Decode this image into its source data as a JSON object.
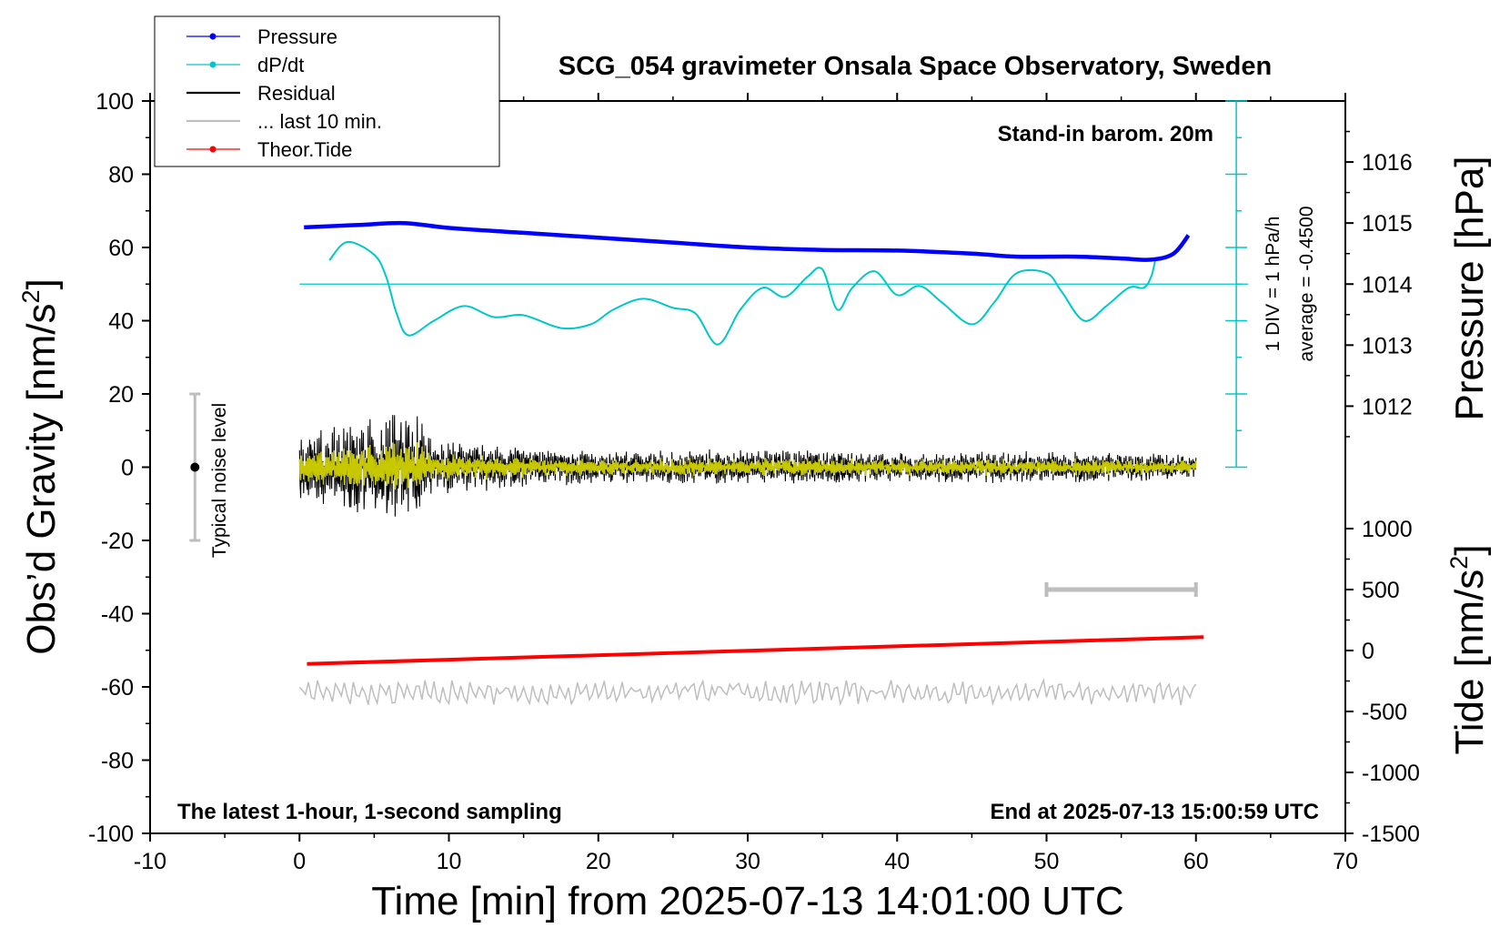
{
  "chart_data": {
    "type": "line",
    "title": "SCG_054 gravimeter Onsala Space Observatory, Sweden",
    "xlabel": "Time [min] from 2025-07-13 14:01:00 UTC",
    "ylabel_left_prefix": "Obs’d Gravity [nm/s",
    "ylabel_right_top": "Pressure [hPa]",
    "ylabel_right_bottom_prefix": "Tide [nm/s",
    "unit_sup": "2",
    "unit_close": "]",
    "xlim": [
      -10,
      70
    ],
    "ylim": [
      -100,
      100
    ],
    "xticks": [
      "-10",
      "0",
      "10",
      "20",
      "30",
      "40",
      "50",
      "60",
      "70"
    ],
    "xtick_values": [
      -10,
      0,
      10,
      20,
      30,
      40,
      50,
      60,
      70
    ],
    "yticks": [
      "-100",
      "-80",
      "-60",
      "-40",
      "-20",
      "0",
      "20",
      "40",
      "60",
      "80",
      "100"
    ],
    "ytick_values": [
      -100,
      -80,
      -60,
      -40,
      -20,
      0,
      20,
      40,
      60,
      80,
      100
    ],
    "pressure_axis": {
      "range_hPa": [
        1011,
        1017
      ],
      "ticks": [
        "1012",
        "1013",
        "1014",
        "1015",
        "1016"
      ],
      "tick_values": [
        1012,
        1013,
        1014,
        1015,
        1016
      ]
    },
    "tide_axis": {
      "range": [
        -1500,
        1500
      ],
      "ticks": [
        "-1500",
        "-1000",
        "-500",
        "0",
        "500",
        "1000"
      ],
      "tick_values": [
        -1500,
        -1000,
        -500,
        0,
        500,
        1000
      ]
    },
    "legend": {
      "position": "top-left",
      "entries": [
        {
          "label": "Pressure",
          "color": "#0000ff",
          "marker": true
        },
        {
          "label": "dP/dt",
          "color": "#00c8c8",
          "marker": true
        },
        {
          "label": "Residual",
          "color": "#000000",
          "marker": false
        },
        {
          "label": "... last 10 min.",
          "color": "#bebebe",
          "marker": false
        },
        {
          "label": "Theor.Tide",
          "color": "#ff0000",
          "marker": true
        }
      ]
    },
    "annotations": {
      "barometer": "Stand-in barom. 20m",
      "sampling": "The latest 1-hour, 1-second sampling",
      "end_time": "End at 2025-07-13 15:00:59 UTC",
      "noise": "Typical noise level",
      "div_scale": "1 DIV = 1 hPa/h",
      "average": "average = -0.4500"
    },
    "noise_level": {
      "x": -7,
      "center": 0,
      "half_range": 20
    },
    "last10_bar": {
      "x_start": 50,
      "x_end": 60
    },
    "series": [
      {
        "name": "Pressure",
        "axis": "pressure_hPa",
        "color": "#0000ff",
        "x": [
          0.3,
          4,
          7,
          10,
          15,
          20,
          25,
          30,
          35,
          40,
          45,
          48,
          52,
          55,
          57,
          58.5,
          59.5
        ],
        "y": [
          1014.93,
          1014.97,
          1015.0,
          1014.92,
          1014.84,
          1014.76,
          1014.68,
          1014.6,
          1014.56,
          1014.55,
          1014.5,
          1014.45,
          1014.45,
          1014.42,
          1014.4,
          1014.5,
          1014.8
        ]
      },
      {
        "name": "dP/dt",
        "axis": "left_offset",
        "color": "#00c8c8",
        "baseline": 50,
        "x": [
          2,
          3.2,
          5,
          5.8,
          6.5,
          7.3,
          9,
          11,
          13,
          15,
          17.5,
          19.5,
          21,
          23,
          25,
          26.5,
          28,
          29.5,
          31,
          32.5,
          34,
          35,
          36,
          37,
          38.5,
          40,
          41.5,
          43,
          45,
          46.5,
          48,
          50,
          51,
          52.5,
          54,
          55.5,
          56.5,
          57,
          57.3
        ],
        "y": [
          56.5,
          61.5,
          58,
          52,
          42,
          36,
          40,
          44,
          41,
          41.5,
          38,
          39,
          43,
          46,
          43.5,
          42,
          33.5,
          43,
          49,
          46.5,
          52,
          54,
          43,
          49,
          53.5,
          47,
          49.5,
          45,
          39,
          45,
          53,
          53,
          48,
          40,
          44,
          49,
          49,
          52,
          57
        ]
      },
      {
        "name": "Residual",
        "axis": "left",
        "color": "#000000",
        "kind": "noise",
        "x_range": [
          0,
          60
        ],
        "envelope_x": [
          0,
          3,
          5,
          6,
          7,
          8,
          9,
          10,
          15,
          20,
          30,
          40,
          50,
          60
        ],
        "envelope_amp": [
          9,
          13,
          15,
          15,
          15,
          14,
          7,
          8,
          5.5,
          4.5,
          5,
          4,
          4.5,
          3.5
        ]
      },
      {
        "name": "... last 10 min.",
        "axis": "left_offset",
        "color": "#bebebe",
        "kind": "noise",
        "baseline": -61.5,
        "x_range": [
          0,
          60
        ],
        "amplitude": 3.5
      },
      {
        "name": "Theor.Tide",
        "axis": "tide",
        "color": "#ff0000",
        "x": [
          0.5,
          60.5
        ],
        "y": [
          -110,
          110
        ]
      }
    ]
  }
}
